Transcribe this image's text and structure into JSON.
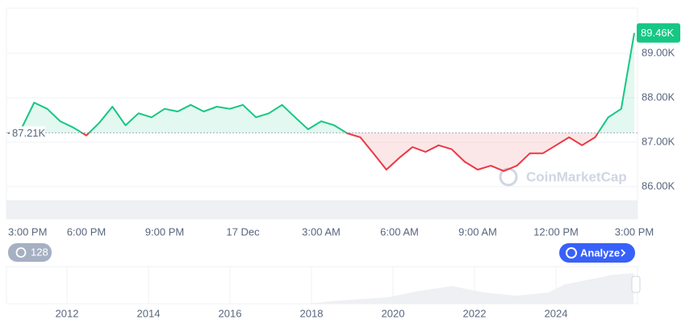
{
  "chart_data": {
    "type": "line",
    "categories": [
      "3:00 PM",
      null,
      null,
      null,
      null,
      null,
      "6:00 PM",
      null,
      null,
      null,
      null,
      null,
      "9:00 PM",
      null,
      null,
      null,
      null,
      null,
      "17 Dec",
      null,
      null,
      null,
      null,
      null,
      "3:00 AM",
      null,
      null,
      null,
      null,
      null,
      "6:00 AM",
      null,
      null,
      null,
      null,
      null,
      "9:00 AM",
      null,
      null,
      null,
      null,
      null,
      "12:00 PM",
      null,
      null,
      null,
      null,
      null,
      "3:00 PM"
    ],
    "values": [
      87.2,
      87.29,
      87.89,
      87.75,
      87.47,
      87.33,
      87.15,
      87.44,
      87.8,
      87.38,
      87.65,
      87.56,
      87.75,
      87.69,
      87.84,
      87.69,
      87.8,
      87.75,
      87.84,
      87.56,
      87.65,
      87.84,
      87.56,
      87.29,
      87.47,
      87.38,
      87.2,
      87.11,
      86.75,
      86.38,
      86.65,
      86.89,
      86.78,
      86.93,
      86.84,
      86.56,
      86.38,
      86.47,
      86.35,
      86.47,
      86.75,
      86.75,
      86.93,
      87.11,
      86.93,
      87.11,
      87.56,
      87.75,
      89.46
    ],
    "value_labels": [
      null,
      null,
      null,
      null,
      null,
      null,
      null,
      null,
      null,
      null,
      null,
      null,
      null,
      null,
      null,
      null,
      null,
      null,
      null,
      null,
      null,
      null,
      null,
      null,
      null,
      null,
      null,
      null,
      null,
      null,
      null,
      null,
      null,
      null,
      null,
      null,
      null,
      null,
      null,
      null,
      null,
      null,
      null,
      null,
      null,
      null,
      null,
      null,
      "89.46K"
    ],
    "reference_line": {
      "value": 87.21,
      "label": "87.21K"
    },
    "above_color": "#16c784",
    "below_color": "#ea3943",
    "ylim": [
      85.27,
      90.02
    ],
    "yticks": [
      {
        "value": 86,
        "label": "86.00K"
      },
      {
        "value": 87,
        "label": "87.00K"
      },
      {
        "value": 88,
        "label": "88.00K"
      },
      {
        "value": 89,
        "label": "89.00K"
      }
    ],
    "grid": true,
    "watermark": "CoinMarketCap",
    "history_button": "128",
    "analyze_button": "Analyze",
    "navigator_labels": [
      "2012",
      "2014",
      "2016",
      "2018",
      "2020",
      "2022",
      "2024"
    ]
  }
}
